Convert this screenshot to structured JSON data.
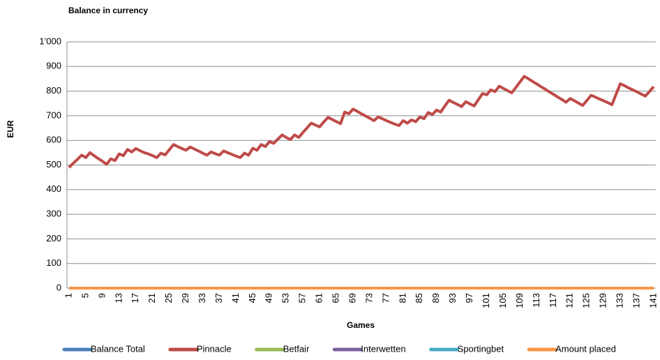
{
  "chart_data": {
    "type": "line",
    "title": "Balance in currency",
    "xlabel": "Games",
    "ylabel": "EUR",
    "categories": [
      1,
      null,
      null,
      null,
      5,
      null,
      null,
      null,
      9,
      null,
      null,
      null,
      13,
      null,
      null,
      null,
      17,
      null,
      null,
      null,
      21,
      null,
      null,
      null,
      25,
      null,
      null,
      null,
      29,
      null,
      null,
      null,
      33,
      null,
      null,
      null,
      37,
      null,
      null,
      null,
      41,
      null,
      null,
      null,
      45,
      null,
      null,
      null,
      49,
      null,
      null,
      null,
      53,
      null,
      null,
      null,
      57,
      null,
      null,
      null,
      61,
      null,
      null,
      null,
      65,
      null,
      null,
      null,
      69,
      null,
      null,
      null,
      73,
      null,
      null,
      null,
      77,
      null,
      null,
      null,
      81,
      null,
      null,
      null,
      85,
      null,
      null,
      null,
      89,
      null,
      null,
      null,
      93,
      null,
      null,
      null,
      97,
      null,
      null,
      null,
      101,
      null,
      null,
      null,
      105,
      null,
      null,
      null,
      109,
      null,
      null,
      null,
      113,
      null,
      null,
      null,
      117,
      null,
      null,
      null,
      121,
      null,
      null,
      null,
      125,
      null,
      null,
      null,
      129,
      null,
      null,
      null,
      133,
      null,
      null,
      null,
      137,
      null,
      null,
      null,
      141
    ],
    "series": [
      {
        "name": "Balance Total",
        "color": "#4a7ebb",
        "values": [
          0,
          0,
          0,
          0,
          0,
          0,
          0,
          0,
          0,
          0,
          0,
          0,
          0,
          0,
          0,
          0,
          0,
          0,
          0,
          0,
          0,
          0,
          0,
          0,
          0,
          0,
          0,
          0,
          0,
          0,
          0,
          0,
          0,
          0,
          0,
          0,
          0,
          0,
          0,
          0,
          0,
          0,
          0,
          0,
          0,
          0,
          0,
          0,
          0,
          0,
          0,
          0,
          0,
          0,
          0,
          0,
          0,
          0,
          0,
          0,
          0,
          0,
          0,
          0,
          0,
          0,
          0,
          0,
          0,
          0,
          0,
          0,
          0,
          0,
          0,
          0,
          0,
          0,
          0,
          0,
          0,
          0,
          0,
          0,
          0,
          0,
          0,
          0,
          0,
          0,
          0,
          0,
          0,
          0,
          0,
          0,
          0,
          0,
          0,
          0,
          0,
          0,
          0,
          0,
          0,
          0,
          0,
          0,
          0,
          0,
          0,
          0,
          0,
          0,
          0,
          0,
          0,
          0,
          0,
          0,
          0,
          0,
          0,
          0,
          0,
          0,
          0,
          0,
          0,
          0,
          0,
          0,
          0,
          0,
          0,
          0,
          0,
          0,
          0,
          0,
          0
        ]
      },
      {
        "name": "Pinnacle",
        "color": "#be4b48",
        "values": [
          490,
          507,
          523,
          540,
          530,
          550,
          538,
          526,
          515,
          503,
          525,
          518,
          545,
          538,
          563,
          553,
          567,
          558,
          550,
          545,
          538,
          530,
          548,
          541,
          562,
          583,
          575,
          567,
          560,
          573,
          565,
          557,
          548,
          540,
          553,
          546,
          540,
          557,
          550,
          543,
          536,
          530,
          548,
          540,
          568,
          560,
          583,
          575,
          595,
          588,
          605,
          622,
          612,
          603,
          622,
          612,
          632,
          651,
          670,
          662,
          655,
          675,
          693,
          685,
          676,
          668,
          715,
          708,
          727,
          718,
          708,
          699,
          690,
          680,
          695,
          688,
          680,
          673,
          666,
          660,
          680,
          670,
          683,
          676,
          695,
          688,
          713,
          705,
          723,
          715,
          740,
          763,
          754,
          746,
          737,
          757,
          748,
          740,
          765,
          790,
          785,
          805,
          798,
          820,
          811,
          802,
          793,
          815,
          838,
          860,
          850,
          839,
          829,
          818,
          808,
          797,
          787,
          776,
          766,
          755,
          770,
          761,
          751,
          742,
          762,
          783,
          776,
          768,
          761,
          753,
          745,
          788,
          830,
          822,
          813,
          805,
          797,
          788,
          780,
          799,
          818
        ]
      },
      {
        "name": "Betfair",
        "color": "#98b954",
        "values": [
          0,
          0,
          0,
          0,
          0,
          0,
          0,
          0,
          0,
          0,
          0,
          0,
          0,
          0,
          0,
          0,
          0,
          0,
          0,
          0,
          0,
          0,
          0,
          0,
          0,
          0,
          0,
          0,
          0,
          0,
          0,
          0,
          0,
          0,
          0,
          0,
          0,
          0,
          0,
          0,
          0,
          0,
          0,
          0,
          0,
          0,
          0,
          0,
          0,
          0,
          0,
          0,
          0,
          0,
          0,
          0,
          0,
          0,
          0,
          0,
          0,
          0,
          0,
          0,
          0,
          0,
          0,
          0,
          0,
          0,
          0,
          0,
          0,
          0,
          0,
          0,
          0,
          0,
          0,
          0,
          0,
          0,
          0,
          0,
          0,
          0,
          0,
          0,
          0,
          0,
          0,
          0,
          0,
          0,
          0,
          0,
          0,
          0,
          0,
          0,
          0,
          0,
          0,
          0,
          0,
          0,
          0,
          0,
          0,
          0,
          0,
          0,
          0,
          0,
          0,
          0,
          0,
          0,
          0,
          0,
          0,
          0,
          0,
          0,
          0,
          0,
          0,
          0,
          0,
          0,
          0,
          0,
          0,
          0,
          0,
          0,
          0,
          0,
          0,
          0,
          0
        ]
      },
      {
        "name": "Interwetten",
        "color": "#7d60a0",
        "values": [
          0,
          0,
          0,
          0,
          0,
          0,
          0,
          0,
          0,
          0,
          0,
          0,
          0,
          0,
          0,
          0,
          0,
          0,
          0,
          0,
          0,
          0,
          0,
          0,
          0,
          0,
          0,
          0,
          0,
          0,
          0,
          0,
          0,
          0,
          0,
          0,
          0,
          0,
          0,
          0,
          0,
          0,
          0,
          0,
          0,
          0,
          0,
          0,
          0,
          0,
          0,
          0,
          0,
          0,
          0,
          0,
          0,
          0,
          0,
          0,
          0,
          0,
          0,
          0,
          0,
          0,
          0,
          0,
          0,
          0,
          0,
          0,
          0,
          0,
          0,
          0,
          0,
          0,
          0,
          0,
          0,
          0,
          0,
          0,
          0,
          0,
          0,
          0,
          0,
          0,
          0,
          0,
          0,
          0,
          0,
          0,
          0,
          0,
          0,
          0,
          0,
          0,
          0,
          0,
          0,
          0,
          0,
          0,
          0,
          0,
          0,
          0,
          0,
          0,
          0,
          0,
          0,
          0,
          0,
          0,
          0,
          0,
          0,
          0,
          0,
          0,
          0,
          0,
          0,
          0,
          0,
          0,
          0,
          0,
          0,
          0,
          0,
          0,
          0,
          0,
          0
        ]
      },
      {
        "name": "Sportingbet",
        "color": "#46aac5",
        "values": [
          0,
          0,
          0,
          0,
          0,
          0,
          0,
          0,
          0,
          0,
          0,
          0,
          0,
          0,
          0,
          0,
          0,
          0,
          0,
          0,
          0,
          0,
          0,
          0,
          0,
          0,
          0,
          0,
          0,
          0,
          0,
          0,
          0,
          0,
          0,
          0,
          0,
          0,
          0,
          0,
          0,
          0,
          0,
          0,
          0,
          0,
          0,
          0,
          0,
          0,
          0,
          0,
          0,
          0,
          0,
          0,
          0,
          0,
          0,
          0,
          0,
          0,
          0,
          0,
          0,
          0,
          0,
          0,
          0,
          0,
          0,
          0,
          0,
          0,
          0,
          0,
          0,
          0,
          0,
          0,
          0,
          0,
          0,
          0,
          0,
          0,
          0,
          0,
          0,
          0,
          0,
          0,
          0,
          0,
          0,
          0,
          0,
          0,
          0,
          0,
          0,
          0,
          0,
          0,
          0,
          0,
          0,
          0,
          0,
          0,
          0,
          0,
          0,
          0,
          0,
          0,
          0,
          0,
          0,
          0,
          0,
          0,
          0,
          0,
          0,
          0,
          0,
          0,
          0,
          0,
          0,
          0,
          0,
          0,
          0,
          0,
          0,
          0,
          0,
          0,
          0
        ]
      },
      {
        "name": "Amount placed",
        "color": "#f79646",
        "values": [
          0,
          0,
          0,
          0,
          0,
          0,
          0,
          0,
          0,
          0,
          0,
          0,
          0,
          0,
          0,
          0,
          0,
          0,
          0,
          0,
          0,
          0,
          0,
          0,
          0,
          0,
          0,
          0,
          0,
          0,
          0,
          0,
          0,
          0,
          0,
          0,
          0,
          0,
          0,
          0,
          0,
          0,
          0,
          0,
          0,
          0,
          0,
          0,
          0,
          0,
          0,
          0,
          0,
          0,
          0,
          0,
          0,
          0,
          0,
          0,
          0,
          0,
          0,
          0,
          0,
          0,
          0,
          0,
          0,
          0,
          0,
          0,
          0,
          0,
          0,
          0,
          0,
          0,
          0,
          0,
          0,
          0,
          0,
          0,
          0,
          0,
          0,
          0,
          0,
          0,
          0,
          0,
          0,
          0,
          0,
          0,
          0,
          0,
          0,
          0,
          0,
          0,
          0,
          0,
          0,
          0,
          0,
          0,
          0,
          0,
          0,
          0,
          0,
          0,
          0,
          0,
          0,
          0,
          0,
          0,
          0,
          0,
          0,
          0,
          0,
          0,
          0,
          0,
          0,
          0,
          0,
          0,
          0,
          0,
          0,
          0,
          0,
          0,
          0,
          0,
          0
        ]
      }
    ],
    "ylim": [
      0,
      1000
    ],
    "yticks": [
      0,
      100,
      200,
      300,
      400,
      500,
      600,
      700,
      800,
      900,
      {
        "value": 1000,
        "label": "1’000"
      }
    ],
    "grid": true,
    "legend": "bottom"
  }
}
